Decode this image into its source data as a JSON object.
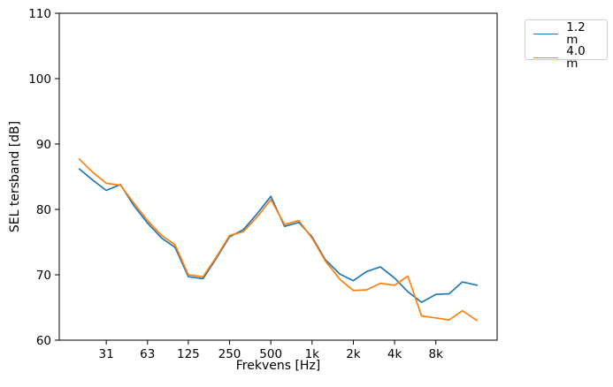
{
  "figure": {
    "background": "#ffffff"
  },
  "chart_data": {
    "type": "line",
    "title": "",
    "xlabel": "Frekvens [Hz]",
    "ylabel": "SEL tersband [dB]",
    "x_scale": "log",
    "grid": false,
    "xlim": [
      14.3,
      22400
    ],
    "ylim": [
      60,
      110
    ],
    "y_ticks": [
      60,
      70,
      80,
      90,
      100,
      110
    ],
    "x_ticks": [
      {
        "freq": 31.5,
        "label": "31"
      },
      {
        "freq": 63,
        "label": "63"
      },
      {
        "freq": 125,
        "label": "125"
      },
      {
        "freq": 250,
        "label": "250"
      },
      {
        "freq": 500,
        "label": "500"
      },
      {
        "freq": 1000,
        "label": "1k"
      },
      {
        "freq": 2000,
        "label": "2k"
      },
      {
        "freq": 4000,
        "label": "4k"
      },
      {
        "freq": 8000,
        "label": "8k"
      }
    ],
    "frequencies_hz": [
      20,
      25,
      31.5,
      40,
      50,
      63,
      80,
      100,
      125,
      160,
      200,
      250,
      315,
      400,
      500,
      630,
      800,
      1000,
      1250,
      1600,
      2000,
      2500,
      3150,
      4000,
      5000,
      6300,
      8000,
      10000,
      12500,
      16000
    ],
    "series": [
      {
        "name": "1.2 m",
        "color": "#1f77b4",
        "values": [
          86.2,
          84.5,
          82.9,
          83.8,
          80.6,
          77.9,
          75.6,
          74.2,
          69.7,
          69.4,
          72.5,
          75.8,
          76.9,
          79.4,
          82.0,
          77.4,
          78.0,
          75.8,
          72.3,
          70.1,
          69.1,
          70.5,
          71.2,
          69.5,
          67.4,
          65.8,
          67.0,
          67.1,
          68.9,
          68.4
        ]
      },
      {
        "name": "4.0 m",
        "color": "#ff7f0e",
        "values": [
          87.7,
          85.7,
          84.0,
          83.7,
          81.0,
          78.3,
          76.0,
          74.6,
          70.0,
          69.7,
          72.7,
          76.0,
          76.6,
          78.9,
          81.5,
          77.7,
          78.3,
          75.6,
          72.1,
          69.3,
          67.6,
          67.7,
          68.7,
          68.4,
          69.8,
          63.7,
          63.4,
          63.1,
          64.5,
          63.0
        ]
      }
    ],
    "legend": {
      "position": "outside-upper-right",
      "entries": [
        "1.2 m",
        "4.0 m"
      ]
    }
  }
}
